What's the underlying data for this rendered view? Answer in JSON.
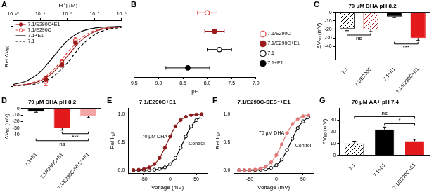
{
  "chart_data": [
    {
      "panel_label": "A",
      "type": "line",
      "x_label": "[H⁺] (M)",
      "y_label": "Rel ΔV₅₀",
      "log": "x",
      "grid": false,
      "legend": "top-left",
      "tick_labels": "x",
      "xlim": [
        1e-10,
        1e-06
      ],
      "xticks": [
        {
          "value": 1e-10,
          "label": "10⁻¹⁰"
        },
        {
          "value": 1e-09,
          "label": "10⁻⁹"
        },
        {
          "value": 1e-08,
          "label": "10⁻⁸"
        },
        {
          "value": 1e-07,
          "label": "10⁻⁷"
        },
        {
          "value": 1e-06,
          "label": "10⁻⁶"
        }
      ],
      "ylim": [
        -1.1,
        0.1
      ],
      "yticks": [
        -1,
        0
      ],
      "x": [
        1e-10,
        3.16e-10,
        1e-09,
        3.16e-09,
        1e-08,
        3.16e-08,
        1e-07,
        3.16e-07,
        1e-06
      ],
      "series": [
        {
          "name": "7.1/E290C+E1",
          "color": "#9b1b1b",
          "line_style": "solid",
          "marker": "filled circle",
          "values": [
            -0.99,
            -0.97,
            -0.91,
            -0.76,
            -0.5,
            -0.24,
            -0.09,
            -0.03,
            -0.01
          ],
          "points": {
            "x": [
              1.6e-09,
              6.3e-09,
              2e-08
            ],
            "values": [
              -0.89,
              -0.64,
              -0.27
            ],
            "errors": [
              0.05,
              0.04,
              0.04
            ]
          }
        },
        {
          "name": "7.1/E290C",
          "color": "#e0403a",
          "line_style": "dashed",
          "marker": "open circle",
          "values": [
            -0.99,
            -0.96,
            -0.89,
            -0.72,
            -0.44,
            -0.2,
            -0.07,
            -0.02,
            -0.01
          ],
          "points": {
            "x": [
              1.6e-09,
              6.3e-09,
              2e-08
            ],
            "values": [
              -0.92,
              -0.6,
              -0.23
            ],
            "errors": [
              0.07,
              0.05,
              0.04
            ]
          }
        },
        {
          "name": "7.1+E1",
          "color": "#000000",
          "line_style": "solid",
          "values": [
            -0.97,
            -0.91,
            -0.76,
            -0.5,
            -0.24,
            -0.09,
            -0.03,
            -0.01,
            0
          ]
        },
        {
          "name": "7.1",
          "color": "#000000",
          "line_style": "dashed",
          "values": [
            -0.99,
            -0.98,
            -0.94,
            -0.83,
            -0.61,
            -0.33,
            -0.14,
            -0.05,
            -0.02
          ]
        }
      ]
    },
    {
      "panel_label": "B",
      "type": "scatter",
      "orientation": "horizontal",
      "x_label": "pH",
      "grid": false,
      "legend": "right",
      "xlim": [
        9.5,
        7.0
      ],
      "xticks": [
        9.5,
        {
          "value": 9,
          "label": "9.0"
        },
        8.5,
        {
          "value": 8,
          "label": "8.0"
        },
        7.5,
        {
          "value": 7,
          "label": "7.0"
        }
      ],
      "series": [
        {
          "name": "7.1/E290C",
          "color": "#e0403a",
          "marker": "open circle",
          "values": [
            8.0
          ],
          "errors": [
            0.2
          ]
        },
        {
          "name": "7.1/E290C+E1",
          "color": "#9b1b1b",
          "marker": "filled circle",
          "values": [
            7.85
          ],
          "errors": [
            0.2
          ]
        },
        {
          "name": "7.1",
          "color": "#000000",
          "marker": "open circle",
          "values": [
            7.75
          ],
          "errors": [
            0.25
          ]
        },
        {
          "name": "7.1+E1",
          "color": "#000000",
          "marker": "filled circle",
          "values": [
            8.4
          ],
          "errors": [
            0.45
          ]
        }
      ]
    },
    {
      "panel_label": "C",
      "type": "bar",
      "title": "70 µM DHA pH 8.2",
      "y_label": "ΔV₅₀ (mV)",
      "grid": false,
      "categories": [
        "7.1",
        "7.1/E290C",
        "7.1+E1",
        "7.1/E290C+E1"
      ],
      "values": [
        -19,
        -20,
        -5,
        -30
      ],
      "errors": [
        2.5,
        2.5,
        1,
        3
      ],
      "colors": [
        "#000000",
        "#b22222",
        "#000000",
        "#e31a1c"
      ],
      "ylim": [
        -55,
        0
      ],
      "yticks": [
        0,
        -10,
        -20,
        -30,
        -40
      ],
      "annotations": [
        {
          "text": "ns",
          "between": [
            "7.1",
            "7.1/E290C"
          ]
        },
        {
          "text": "***",
          "between": [
            "7.1+E1",
            "7.1/E290C+E1"
          ]
        }
      ]
    },
    {
      "panel_label": "D",
      "type": "bar",
      "title": "70 µM DHA pH 8.2",
      "y_label": "ΔV₅₀ (mV)",
      "grid": false,
      "categories": [
        "7.1+E1",
        "7.1/E290C+E1",
        "7.1/E290C-SES⁻+E1"
      ],
      "values": [
        -5,
        -30,
        -12
      ],
      "errors": [
        1,
        3,
        2
      ],
      "colors": [
        "#000000",
        "#e31a1c",
        "#f4a6a6"
      ],
      "ylim": [
        -55,
        0
      ],
      "yticks": [
        0,
        -10,
        -20,
        -30,
        -40
      ],
      "annotations": [
        {
          "text": "***",
          "between": [
            "7.1/E290C+E1",
            "7.1/E290C-SES⁻+E1"
          ]
        },
        {
          "text": "ns",
          "between": [
            "7.1+E1",
            "7.1/E290C-SES⁻+E1"
          ]
        }
      ]
    },
    {
      "panel_label": "E",
      "type": "line",
      "title": "7.1/E290C+E1",
      "x_label": "Voltage (mV)",
      "y_label": "Rel Iₜₐᵢₗ",
      "grid": false,
      "xlim": [
        -80,
        70
      ],
      "xticks": [
        -50,
        0,
        50
      ],
      "ylim": [
        -0.05,
        1.1
      ],
      "yticks": [
        {
          "value": 0,
          "label": "0.0"
        },
        0.5,
        {
          "value": 1,
          "label": "1.0"
        }
      ],
      "x": [
        -70,
        -60,
        -50,
        -40,
        -30,
        -20,
        -10,
        0,
        10,
        20,
        30,
        40,
        50,
        60
      ],
      "series": [
        {
          "name": "70 µM DHA",
          "color": "#8b1a1a",
          "marker": "filled circle",
          "values": [
            0.004,
            0.01,
            0.023,
            0.051,
            0.11,
            0.22,
            0.4,
            0.6,
            0.78,
            0.89,
            0.95,
            0.98,
            0.99,
            0.995
          ]
        },
        {
          "name": "Control",
          "color": "#000000",
          "marker": "open circle",
          "values": [
            0,
            0.001,
            0.002,
            0.004,
            0.01,
            0.023,
            0.051,
            0.11,
            0.22,
            0.4,
            0.6,
            0.78,
            0.89,
            0.95
          ]
        }
      ]
    },
    {
      "panel_label": "F",
      "type": "line",
      "title": "7.1/E290C-SES⁻+E1",
      "x_label": "Voltage (mV)",
      "y_label": "Rel Iₜₐᵢₗ",
      "grid": false,
      "xlim": [
        -80,
        70
      ],
      "xticks": [
        -50,
        0,
        50
      ],
      "ylim": [
        -0.05,
        1.1
      ],
      "yticks": [
        {
          "value": 0,
          "label": "0.0"
        },
        0.5,
        {
          "value": 1,
          "label": "1.0"
        }
      ],
      "x": [
        -70,
        -60,
        -50,
        -40,
        -30,
        -20,
        -10,
        0,
        10,
        20,
        30,
        40,
        50,
        60
      ],
      "series": [
        {
          "name": "70 µM DHA",
          "color": "#e07a7a",
          "marker": "filled circle",
          "values": [
            0.001,
            0.003,
            0.006,
            0.013,
            0.029,
            0.065,
            0.14,
            0.27,
            0.46,
            0.66,
            0.82,
            0.91,
            0.96,
            0.98
          ]
        },
        {
          "name": "Control",
          "color": "#000000",
          "marker": "open circle",
          "values": [
            0,
            0.001,
            0.002,
            0.003,
            0.008,
            0.019,
            0.043,
            0.09,
            0.19,
            0.36,
            0.56,
            0.75,
            0.87,
            0.94
          ]
        }
      ]
    },
    {
      "panel_label": "G",
      "type": "bar",
      "title": "70 µM AA+ pH 7.4",
      "y_label": "ΔV₅₀ (mV)",
      "grid": false,
      "categories": [
        "7.1",
        "7.1+E1",
        "7.1/E290C+E1"
      ],
      "values": [
        10,
        22,
        12
      ],
      "errors": [
        2,
        2,
        1.5
      ],
      "colors": [
        "#000000",
        "#000000",
        "#e31a1c"
      ],
      "ylim": [
        0,
        40
      ],
      "yticks": [
        0,
        10,
        20,
        30
      ],
      "annotations": [
        {
          "text": "*",
          "between": [
            "7.1+E1",
            "7.1/E290C+E1"
          ]
        },
        {
          "text": "ns",
          "between": [
            "7.1",
            "7.1/E290C+E1"
          ]
        }
      ]
    }
  ]
}
